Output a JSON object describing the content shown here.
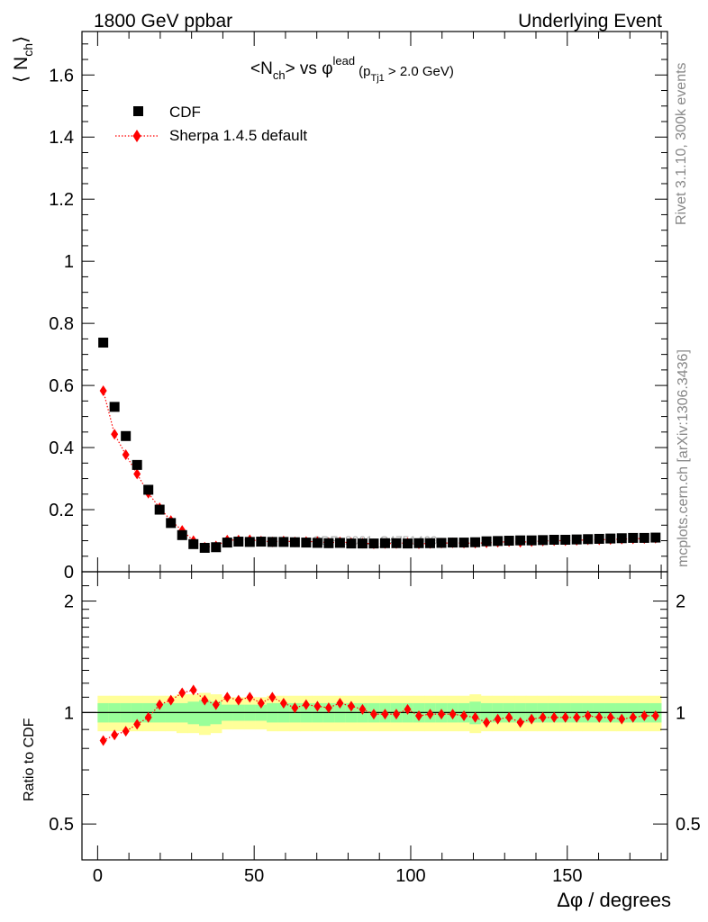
{
  "header": {
    "left": "1800 GeV ppbar",
    "right": "Underlying Event"
  },
  "side": {
    "rivet": "Rivet 3.1.10,  300k events",
    "mcplots": "mcplots.cern.ch [arXiv:1306.3436]"
  },
  "watermark": "CDF_2001_S4751469",
  "plot_title": {
    "main": "<N",
    "sub1": "ch",
    "mid": "> vs φ",
    "sup": "lead",
    "paren_open": "(p",
    "sub2": "Tj1",
    "tail": " > 2.0 GeV)"
  },
  "y_label_main": {
    "main": "⟨ N",
    "sub": "ch",
    "close": "⟩"
  },
  "y_label_ratio": "Ratio to CDF",
  "x_label": "Δφ / degrees",
  "legend": [
    {
      "label": "CDF",
      "marker": "square",
      "color": "#000000"
    },
    {
      "label": "Sherpa 1.4.5 default",
      "marker": "diamond",
      "color": "#ff0000"
    }
  ],
  "colors": {
    "data": "#000000",
    "mc": "#ff0000",
    "band_inner": "#99ff99",
    "band_outer": "#ffff99"
  },
  "chart_data": [
    {
      "type": "scatter",
      "panel": "main",
      "xlim": [
        -5,
        182
      ],
      "ylim": [
        0,
        1.74
      ],
      "yticks": [
        0,
        0.2,
        0.4,
        0.6,
        0.8,
        1,
        1.2,
        1.4,
        1.6
      ],
      "ytick_labels": [
        "0",
        "0.2",
        "0.4",
        "0.6",
        "0.8",
        "1",
        "1.2",
        "1.4",
        "1.6"
      ],
      "x": [
        1.8,
        5.4,
        9.0,
        12.6,
        16.2,
        19.8,
        23.4,
        27.0,
        30.6,
        34.2,
        37.8,
        41.4,
        45.0,
        48.6,
        52.2,
        55.8,
        59.4,
        63.0,
        66.6,
        70.2,
        73.8,
        77.4,
        81.0,
        84.6,
        88.2,
        91.8,
        95.4,
        99.0,
        102.6,
        106.2,
        109.8,
        113.4,
        117.0,
        120.6,
        124.2,
        127.8,
        131.4,
        135.0,
        138.6,
        142.2,
        145.8,
        149.4,
        153.0,
        156.6,
        160.2,
        163.8,
        167.4,
        171.0,
        174.6,
        178.2
      ],
      "series": [
        {
          "name": "CDF",
          "values": [
            0.738,
            0.531,
            0.437,
            0.344,
            0.264,
            0.2,
            0.157,
            0.118,
            0.089,
            0.077,
            0.079,
            0.094,
            0.097,
            0.096,
            0.097,
            0.096,
            0.096,
            0.095,
            0.094,
            0.093,
            0.092,
            0.093,
            0.091,
            0.091,
            0.091,
            0.092,
            0.092,
            0.091,
            0.092,
            0.092,
            0.093,
            0.094,
            0.094,
            0.095,
            0.098,
            0.099,
            0.1,
            0.101,
            0.101,
            0.102,
            0.103,
            0.103,
            0.104,
            0.105,
            0.106,
            0.107,
            0.108,
            0.109,
            0.109,
            0.11
          ]
        },
        {
          "name": "Sherpa 1.4.5 default",
          "values": [
            0.583,
            0.443,
            0.377,
            0.315,
            0.253,
            0.206,
            0.165,
            0.133,
            0.1,
            0.079,
            0.083,
            0.102,
            0.102,
            0.103,
            0.099,
            0.096,
            0.099,
            0.096,
            0.097,
            0.097,
            0.093,
            0.096,
            0.093,
            0.092,
            0.09,
            0.091,
            0.091,
            0.093,
            0.09,
            0.091,
            0.092,
            0.093,
            0.092,
            0.092,
            0.093,
            0.095,
            0.097,
            0.095,
            0.097,
            0.099,
            0.1,
            0.1,
            0.101,
            0.103,
            0.103,
            0.104,
            0.105,
            0.106,
            0.107,
            0.108
          ]
        }
      ]
    },
    {
      "type": "scatter",
      "panel": "ratio",
      "xlim": [
        -5,
        182
      ],
      "ylim_log": [
        0.4,
        2.4
      ],
      "xticks": [
        0,
        50,
        100,
        150
      ],
      "xtick_labels": [
        "0",
        "50",
        "100",
        "150"
      ],
      "yticks": [
        0.5,
        1,
        2
      ],
      "ytick_labels": [
        "0.5",
        "1",
        "2"
      ],
      "x": [
        1.8,
        5.4,
        9.0,
        12.6,
        16.2,
        19.8,
        23.4,
        27.0,
        30.6,
        34.2,
        37.8,
        41.4,
        45.0,
        48.6,
        52.2,
        55.8,
        59.4,
        63.0,
        66.6,
        70.2,
        73.8,
        77.4,
        81.0,
        84.6,
        88.2,
        91.8,
        95.4,
        99.0,
        102.6,
        106.2,
        109.8,
        113.4,
        117.0,
        120.6,
        124.2,
        127.8,
        131.4,
        135.0,
        138.6,
        142.2,
        145.8,
        149.4,
        153.0,
        156.6,
        160.2,
        163.8,
        167.4,
        171.0,
        174.6,
        178.2
      ],
      "series": [
        {
          "name": "Sherpa 1.4.5 default",
          "values": [
            0.84,
            0.87,
            0.89,
            0.93,
            0.97,
            1.05,
            1.08,
            1.13,
            1.15,
            1.08,
            1.05,
            1.1,
            1.08,
            1.1,
            1.06,
            1.1,
            1.06,
            1.03,
            1.05,
            1.04,
            1.03,
            1.06,
            1.04,
            1.02,
            0.99,
            0.99,
            0.99,
            1.02,
            0.98,
            0.99,
            0.99,
            0.99,
            0.98,
            0.97,
            0.94,
            0.96,
            0.97,
            0.94,
            0.96,
            0.97,
            0.97,
            0.97,
            0.97,
            0.98,
            0.97,
            0.97,
            0.96,
            0.97,
            0.98,
            0.98
          ]
        }
      ],
      "band_inner_halfwidth": [
        0.06,
        0.06,
        0.06,
        0.06,
        0.06,
        0.06,
        0.06,
        0.06,
        0.07,
        0.08,
        0.07,
        0.05,
        0.05,
        0.05,
        0.05,
        0.06,
        0.06,
        0.06,
        0.06,
        0.06,
        0.06,
        0.06,
        0.06,
        0.06,
        0.06,
        0.06,
        0.06,
        0.06,
        0.06,
        0.06,
        0.06,
        0.06,
        0.06,
        0.07,
        0.06,
        0.06,
        0.06,
        0.06,
        0.06,
        0.06,
        0.06,
        0.06,
        0.06,
        0.06,
        0.06,
        0.06,
        0.06,
        0.06,
        0.06,
        0.06
      ],
      "band_outer_halfwidth": [
        0.11,
        0.11,
        0.11,
        0.11,
        0.11,
        0.11,
        0.11,
        0.12,
        0.12,
        0.13,
        0.12,
        0.1,
        0.1,
        0.1,
        0.1,
        0.11,
        0.11,
        0.11,
        0.11,
        0.11,
        0.11,
        0.11,
        0.11,
        0.11,
        0.11,
        0.11,
        0.11,
        0.11,
        0.11,
        0.11,
        0.11,
        0.11,
        0.11,
        0.12,
        0.11,
        0.11,
        0.11,
        0.11,
        0.11,
        0.11,
        0.11,
        0.11,
        0.11,
        0.11,
        0.11,
        0.11,
        0.11,
        0.11,
        0.11,
        0.11
      ]
    }
  ]
}
